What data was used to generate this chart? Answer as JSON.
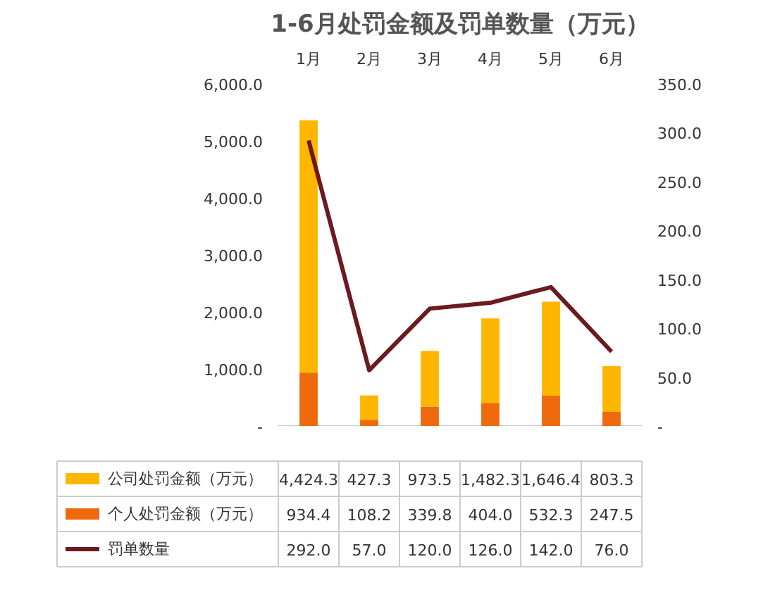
{
  "chart_data": {
    "type": "bar",
    "title": "1-6月处罚金额及罚单数量（万元）",
    "categories": [
      "1月",
      "2月",
      "3月",
      "4月",
      "5月",
      "6月"
    ],
    "stacked": true,
    "legend": "bottom",
    "ylim": [
      0,
      6000
    ],
    "yticks": [
      {
        "value": 0,
        "label": "-"
      },
      {
        "value": 1000,
        "label": "1,000.0"
      },
      {
        "value": 2000,
        "label": "2,000.0"
      },
      {
        "value": 3000,
        "label": "3,000.0"
      },
      {
        "value": 4000,
        "label": "4,000.0"
      },
      {
        "value": 5000,
        "label": "5,000.0"
      },
      {
        "value": 6000,
        "label": "6,000.0"
      }
    ],
    "y2lim": [
      0,
      350
    ],
    "y2ticks": [
      {
        "value": 0,
        "label": "-"
      },
      {
        "value": 50,
        "label": "50.0"
      },
      {
        "value": 100,
        "label": "100.0"
      },
      {
        "value": 150,
        "label": "150.0"
      },
      {
        "value": 200,
        "label": "200.0"
      },
      {
        "value": 250,
        "label": "250.0"
      },
      {
        "value": 300,
        "label": "300.0"
      },
      {
        "value": 350,
        "label": "350.0"
      }
    ],
    "series": [
      {
        "name": "个人处罚金额（万元）",
        "color": "#ee6a0c",
        "values": [
          934.4,
          108.2,
          339.8,
          404.0,
          532.3,
          247.5
        ],
        "value_labels": [
          "934.4",
          "108.2",
          "339.8",
          "404.0",
          "532.3",
          "247.5"
        ]
      },
      {
        "name": "公司处罚金额（万元）",
        "color": "#ffb600",
        "values": [
          4424.3,
          427.3,
          973.5,
          1482.3,
          1646.4,
          803.3
        ],
        "value_labels": [
          "4,424.3",
          "427.3",
          "973.5",
          "1,482.3",
          "1,646.4",
          "803.3"
        ]
      },
      {
        "name": "罚单数量",
        "type": "line",
        "axis": "y2",
        "color": "#6b1a1f",
        "values": [
          292.0,
          57.0,
          120.0,
          126.0,
          142.0,
          76.0
        ],
        "value_labels": [
          "292.0",
          "57.0",
          "120.0",
          "126.0",
          "142.0",
          "76.0"
        ]
      }
    ]
  }
}
